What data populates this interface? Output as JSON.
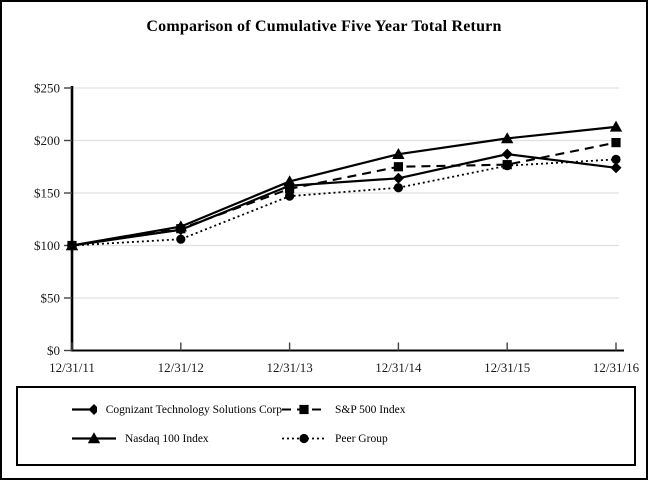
{
  "chart_data": {
    "type": "line",
    "title": "Comparison of Cumulative Five Year Total Return",
    "x_labels": [
      "12/31/11",
      "12/31/12",
      "12/31/13",
      "12/31/14",
      "12/31/15",
      "12/31/16"
    ],
    "y_tick_labels": [
      "$0",
      "$50",
      "$100",
      "$150",
      "$200",
      "$250"
    ],
    "y_tick_values": [
      0,
      50,
      100,
      150,
      200,
      250
    ],
    "ylim": [
      0,
      250
    ],
    "grid": true,
    "legend_position": "bottom-box",
    "series": [
      {
        "name": "Cognizant Technology Solutions Corp",
        "marker": "diamond",
        "line_style": "solid",
        "color": "#000000",
        "values": [
          100,
          115,
          157,
          164,
          187,
          174
        ]
      },
      {
        "name": "S&P 500 Index",
        "marker": "square",
        "line_style": "dashed",
        "color": "#000000",
        "values": [
          100,
          116,
          154,
          175,
          177,
          198
        ]
      },
      {
        "name": "Nasdaq 100 Index",
        "marker": "triangle",
        "line_style": "solid",
        "color": "#000000",
        "values": [
          100,
          118,
          161,
          187,
          202,
          213
        ]
      },
      {
        "name": "Peer Group",
        "marker": "circle",
        "line_style": "dotted",
        "color": "#000000",
        "values": [
          100,
          106,
          147,
          155,
          176,
          182
        ]
      }
    ],
    "colors": {
      "series": "#000000",
      "grid": "#e0e0e0",
      "axis": "#000000",
      "tick": "#444444",
      "text": "#1a1a1a"
    }
  }
}
